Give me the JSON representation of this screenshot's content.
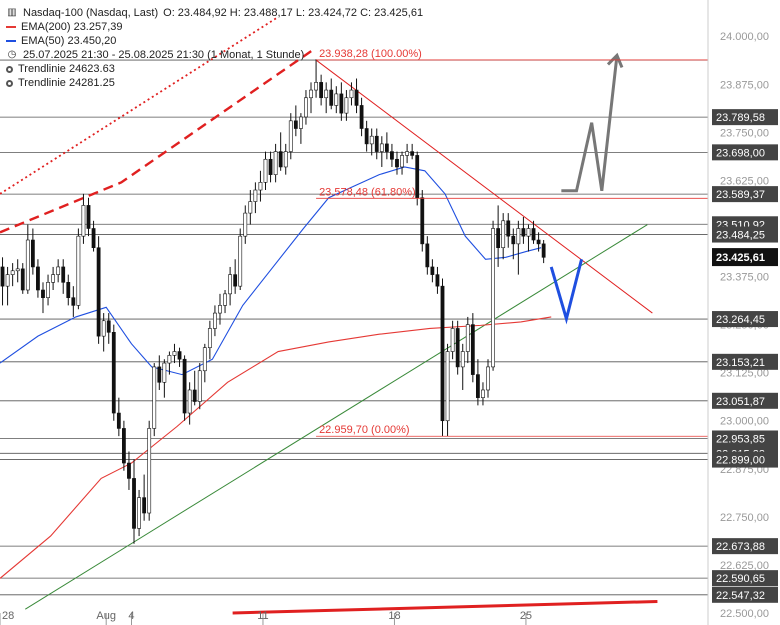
{
  "legend": {
    "instrument": "Nasdaq-100 (Nasdaq, Last)",
    "ohlc": "O: 23.484,92  H: 23.488,17  L: 23.424,72  C: 23.425,61",
    "ema200": "EMA(200)  23.257,39",
    "ema50": "EMA(50)  23.450,20",
    "period": "25.07.2025 21:30 - 25.08.2025 21:30   (1 Monat, 1 Stunde)",
    "trend1": "Trendlinie  24623.63",
    "trend2": "Trendlinie  24281.25",
    "colors": {
      "ema200": "#e53935",
      "ema50": "#1f4fe0"
    }
  },
  "chart_data": {
    "type": "candlestick",
    "title": "Nasdaq-100 (Nasdaq, Last)",
    "ylim": [
      22500,
      24050
    ],
    "xlim": [
      0,
      280
    ],
    "x_ticks": [
      {
        "label": "28",
        "x": 0
      },
      {
        "label": "Aug",
        "x": 42
      },
      {
        "label": "4",
        "x": 52
      },
      {
        "label": "11",
        "x": 104
      },
      {
        "label": "18",
        "x": 156
      },
      {
        "label": "25",
        "x": 208
      }
    ],
    "y_ticks": [
      24000,
      23875,
      23750,
      23625,
      23500,
      23375,
      23250,
      23125,
      23000,
      22875,
      22750,
      22625,
      22500
    ],
    "y_tick_labels": [
      "24.000,00",
      "23.875,00",
      "23.750,00",
      "23.625,00",
      "23.500,00",
      "23.375,00",
      "23.250,00",
      "23.125,00",
      "23.000,00",
      "22.875,00",
      "22.750,00",
      "22.625,00",
      "22.500,00"
    ],
    "price_levels": [
      {
        "value": 23938,
        "label": ""
      },
      {
        "value": 23789.58,
        "label": "23.789,58"
      },
      {
        "value": 23698.0,
        "label": "23.698,00"
      },
      {
        "value": 23589.37,
        "label": "23.589,37"
      },
      {
        "value": 23510.92,
        "label": "23.510,92"
      },
      {
        "value": 23484.25,
        "label": "23.484,25"
      },
      {
        "value": 23264.45,
        "label": "23.264,45"
      },
      {
        "value": 23153.21,
        "label": "23.153,21"
      },
      {
        "value": 23051.87,
        "label": "23.051,87"
      },
      {
        "value": 22953.85,
        "label": "22.953,85"
      },
      {
        "value": 22915.33,
        "label": "22.915,33"
      },
      {
        "value": 22899.0,
        "label": "22.899,00"
      },
      {
        "value": 22673.88,
        "label": "22.673,88"
      },
      {
        "value": 22590.65,
        "label": "22.590,65"
      },
      {
        "value": 22547.32,
        "label": "22.547,32"
      }
    ],
    "last_price": {
      "value": 23425.61,
      "label": "23.425,61"
    },
    "fib_levels": [
      {
        "label": "23.938,28 (100.00%)",
        "value": 23938.28
      },
      {
        "label": "23.578,48 (61.80%)",
        "value": 23578.48
      },
      {
        "label": "22.959,70 (0.00%)",
        "value": 22959.7
      }
    ],
    "ema200": [
      [
        0,
        22590
      ],
      [
        20,
        22700
      ],
      [
        40,
        22850
      ],
      [
        52,
        22890
      ],
      [
        70,
        22985
      ],
      [
        90,
        23100
      ],
      [
        110,
        23180
      ],
      [
        130,
        23205
      ],
      [
        150,
        23225
      ],
      [
        170,
        23240
      ],
      [
        190,
        23248
      ],
      [
        206,
        23257
      ],
      [
        218,
        23270
      ]
    ],
    "ema50": [
      [
        0,
        23150
      ],
      [
        15,
        23220
      ],
      [
        30,
        23270
      ],
      [
        42,
        23295
      ],
      [
        52,
        23200
      ],
      [
        60,
        23140
      ],
      [
        72,
        23120
      ],
      [
        84,
        23160
      ],
      [
        96,
        23300
      ],
      [
        108,
        23400
      ],
      [
        120,
        23500
      ],
      [
        130,
        23580
      ],
      [
        140,
        23610
      ],
      [
        150,
        23640
      ],
      [
        160,
        23660
      ],
      [
        168,
        23650
      ],
      [
        176,
        23590
      ],
      [
        184,
        23480
      ],
      [
        192,
        23420
      ],
      [
        200,
        23425
      ],
      [
        208,
        23440
      ],
      [
        214,
        23450
      ]
    ],
    "trendlines": [
      {
        "style": "red-dashed",
        "points": [
          [
            0,
            23490
          ],
          [
            48,
            23620
          ],
          [
            125,
            23970
          ]
        ]
      },
      {
        "style": "red-dotted",
        "points": [
          [
            0,
            23590
          ],
          [
            110,
            24050
          ]
        ]
      },
      {
        "style": "red-solid",
        "points": [
          [
            125,
            23938
          ],
          [
            258,
            23280
          ]
        ]
      },
      {
        "style": "green",
        "points": [
          [
            10,
            22510
          ],
          [
            256,
            23510
          ]
        ]
      },
      {
        "style": "red-thick",
        "points": [
          [
            92,
            22500
          ],
          [
            260,
            22530
          ]
        ]
      }
    ],
    "projection_blue": [
      [
        218,
        23400
      ],
      [
        224,
        23265
      ],
      [
        230,
        23420
      ]
    ],
    "projection_gray": [
      [
        222,
        23598
      ],
      [
        228,
        23598
      ],
      [
        234,
        23775
      ],
      [
        238,
        23598
      ],
      [
        244,
        23950
      ]
    ],
    "candles": [
      [
        1,
        23400,
        23425,
        23300,
        23350
      ],
      [
        3,
        23350,
        23400,
        23300,
        23380
      ],
      [
        5,
        23380,
        23410,
        23350,
        23390
      ],
      [
        7,
        23390,
        23420,
        23360,
        23395
      ],
      [
        9,
        23395,
        23410,
        23330,
        23340
      ],
      [
        11,
        23340,
        23510,
        23330,
        23470
      ],
      [
        13,
        23470,
        23500,
        23380,
        23400
      ],
      [
        15,
        23400,
        23420,
        23320,
        23340
      ],
      [
        17,
        23340,
        23360,
        23280,
        23320
      ],
      [
        19,
        23320,
        23380,
        23300,
        23360
      ],
      [
        21,
        23360,
        23400,
        23340,
        23380
      ],
      [
        23,
        23380,
        23420,
        23360,
        23400
      ],
      [
        25,
        23400,
        23420,
        23330,
        23360
      ],
      [
        27,
        23360,
        23380,
        23300,
        23320
      ],
      [
        29,
        23320,
        23350,
        23270,
        23300
      ],
      [
        31,
        23300,
        23500,
        23290,
        23480
      ],
      [
        33,
        23480,
        23590,
        23460,
        23560
      ],
      [
        35,
        23560,
        23580,
        23480,
        23500
      ],
      [
        37,
        23500,
        23520,
        23440,
        23450
      ],
      [
        39,
        23450,
        23480,
        23200,
        23220
      ],
      [
        41,
        23220,
        23280,
        23180,
        23260
      ],
      [
        43,
        23260,
        23280,
        23200,
        23230
      ],
      [
        45,
        23230,
        23250,
        23000,
        23020
      ],
      [
        47,
        23020,
        23060,
        22960,
        22980
      ],
      [
        49,
        22980,
        23000,
        22870,
        22890
      ],
      [
        51,
        22890,
        22920,
        22820,
        22850
      ],
      [
        53,
        22850,
        22900,
        22680,
        22720
      ],
      [
        55,
        22720,
        22820,
        22700,
        22800
      ],
      [
        57,
        22800,
        22860,
        22740,
        22760
      ],
      [
        59,
        22760,
        23000,
        22740,
        22980
      ],
      [
        61,
        22980,
        23150,
        22960,
        23140
      ],
      [
        63,
        23140,
        23170,
        23080,
        23100
      ],
      [
        65,
        23100,
        23160,
        23060,
        23150
      ],
      [
        67,
        23150,
        23180,
        23120,
        23170
      ],
      [
        69,
        23170,
        23200,
        23150,
        23180
      ],
      [
        71,
        23180,
        23190,
        23140,
        23160
      ],
      [
        73,
        23160,
        23170,
        23000,
        23020
      ],
      [
        75,
        23020,
        23100,
        22990,
        23080
      ],
      [
        77,
        23080,
        23130,
        23040,
        23050
      ],
      [
        79,
        23050,
        23150,
        23030,
        23130
      ],
      [
        81,
        23130,
        23200,
        23100,
        23190
      ],
      [
        83,
        23190,
        23260,
        23160,
        23240
      ],
      [
        85,
        23240,
        23300,
        23220,
        23280
      ],
      [
        87,
        23280,
        23330,
        23250,
        23300
      ],
      [
        89,
        23300,
        23340,
        23280,
        23330
      ],
      [
        91,
        23330,
        23400,
        23300,
        23380
      ],
      [
        93,
        23380,
        23420,
        23330,
        23350
      ],
      [
        95,
        23350,
        23500,
        23340,
        23480
      ],
      [
        97,
        23480,
        23560,
        23460,
        23540
      ],
      [
        99,
        23540,
        23600,
        23510,
        23570
      ],
      [
        101,
        23570,
        23620,
        23540,
        23600
      ],
      [
        103,
        23600,
        23650,
        23570,
        23620
      ],
      [
        105,
        23620,
        23700,
        23600,
        23680
      ],
      [
        107,
        23680,
        23700,
        23620,
        23640
      ],
      [
        109,
        23640,
        23720,
        23620,
        23700
      ],
      [
        111,
        23700,
        23750,
        23650,
        23660
      ],
      [
        113,
        23660,
        23720,
        23640,
        23700
      ],
      [
        115,
        23700,
        23800,
        23680,
        23780
      ],
      [
        117,
        23780,
        23820,
        23740,
        23760
      ],
      [
        119,
        23760,
        23800,
        23720,
        23790
      ],
      [
        121,
        23790,
        23860,
        23770,
        23840
      ],
      [
        123,
        23840,
        23880,
        23800,
        23860
      ],
      [
        125,
        23860,
        23940,
        23840,
        23880
      ],
      [
        127,
        23880,
        23900,
        23820,
        23840
      ],
      [
        129,
        23840,
        23880,
        23800,
        23860
      ],
      [
        131,
        23860,
        23890,
        23810,
        23820
      ],
      [
        133,
        23820,
        23870,
        23800,
        23850
      ],
      [
        135,
        23850,
        23880,
        23780,
        23800
      ],
      [
        137,
        23800,
        23860,
        23780,
        23840
      ],
      [
        139,
        23840,
        23880,
        23820,
        23860
      ],
      [
        141,
        23860,
        23890,
        23800,
        23820
      ],
      [
        143,
        23820,
        23840,
        23740,
        23760
      ],
      [
        145,
        23760,
        23780,
        23700,
        23720
      ],
      [
        147,
        23720,
        23760,
        23690,
        23740
      ],
      [
        149,
        23740,
        23760,
        23680,
        23700
      ],
      [
        151,
        23700,
        23740,
        23660,
        23720
      ],
      [
        153,
        23720,
        23750,
        23680,
        23700
      ],
      [
        155,
        23700,
        23720,
        23660,
        23680
      ],
      [
        157,
        23680,
        23700,
        23640,
        23660
      ],
      [
        159,
        23660,
        23700,
        23640,
        23690
      ],
      [
        161,
        23690,
        23720,
        23670,
        23700
      ],
      [
        163,
        23700,
        23720,
        23680,
        23690
      ],
      [
        165,
        23690,
        23700,
        23560,
        23580
      ],
      [
        167,
        23580,
        23600,
        23440,
        23460
      ],
      [
        169,
        23460,
        23480,
        23380,
        23400
      ],
      [
        171,
        23400,
        23420,
        23360,
        23380
      ],
      [
        173,
        23380,
        23400,
        23330,
        23350
      ],
      [
        175,
        23350,
        23370,
        22960,
        23000
      ],
      [
        177,
        23000,
        23200,
        22960,
        23180
      ],
      [
        179,
        23180,
        23260,
        23160,
        23240
      ],
      [
        181,
        23240,
        23260,
        23120,
        23140
      ],
      [
        183,
        23140,
        23200,
        23080,
        23180
      ],
      [
        185,
        23180,
        23270,
        23150,
        23250
      ],
      [
        187,
        23250,
        23280,
        23100,
        23120
      ],
      [
        189,
        23120,
        23160,
        23040,
        23060
      ],
      [
        191,
        23060,
        23100,
        23040,
        23080
      ],
      [
        193,
        23080,
        23160,
        23060,
        23140
      ],
      [
        195,
        23140,
        23520,
        23130,
        23500
      ],
      [
        197,
        23500,
        23560,
        23400,
        23450
      ],
      [
        199,
        23450,
        23540,
        23420,
        23520
      ],
      [
        201,
        23520,
        23540,
        23450,
        23480
      ],
      [
        203,
        23480,
        23500,
        23420,
        23460
      ],
      [
        205,
        23460,
        23520,
        23380,
        23500
      ],
      [
        207,
        23500,
        23530,
        23460,
        23480
      ],
      [
        209,
        23480,
        23510,
        23440,
        23500
      ],
      [
        211,
        23500,
        23520,
        23460,
        23470
      ],
      [
        213,
        23470,
        23490,
        23440,
        23460
      ],
      [
        215,
        23460,
        23470,
        23410,
        23425
      ]
    ]
  }
}
